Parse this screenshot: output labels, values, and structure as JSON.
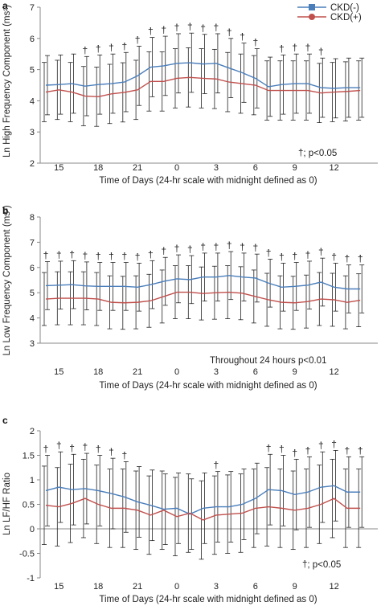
{
  "legend": [
    {
      "label": "CKD(-)",
      "color": "#4a7ebb",
      "marker": "square"
    },
    {
      "label": "CKD(+)",
      "color": "#c0504d",
      "marker": "circle"
    }
  ],
  "chart_data": [
    {
      "panel": "a",
      "type": "line",
      "ylabel": "Ln High Frequency Component (ms²)",
      "xlabel": "Time of Days (24-hr scale with midnight defined as 0)",
      "ylim": [
        2,
        7
      ],
      "yticks": [
        2,
        3,
        4,
        5,
        6,
        7
      ],
      "x": [
        14,
        15,
        16,
        17,
        18,
        19,
        20,
        21,
        22,
        23,
        0,
        1,
        2,
        3,
        4,
        5,
        6,
        7,
        8,
        9,
        10,
        11,
        12,
        13,
        14
      ],
      "xtick_labels": [
        "15",
        "18",
        "21",
        "0",
        "3",
        "6",
        "9",
        "12"
      ],
      "series": [
        {
          "name": "CKD(-)",
          "color": "#4a7ebb",
          "values": [
            4.5,
            4.52,
            4.55,
            4.47,
            4.52,
            4.55,
            4.6,
            4.8,
            5.08,
            5.12,
            5.2,
            5.22,
            5.18,
            5.2,
            5.05,
            4.9,
            4.72,
            4.45,
            4.52,
            4.55,
            4.55,
            4.42,
            4.4,
            4.42,
            4.42
          ],
          "sd": [
            0.95,
            0.95,
            0.95,
            0.95,
            0.95,
            0.95,
            0.95,
            0.95,
            0.95,
            0.95,
            0.95,
            0.95,
            0.95,
            0.95,
            0.95,
            0.95,
            0.95,
            0.95,
            0.95,
            0.95,
            0.95,
            0.95,
            0.95,
            0.95,
            0.95
          ]
        },
        {
          "name": "CKD(+)",
          "color": "#c0504d",
          "values": [
            4.28,
            4.35,
            4.28,
            4.15,
            4.13,
            4.22,
            4.27,
            4.35,
            4.62,
            4.62,
            4.72,
            4.75,
            4.72,
            4.7,
            4.6,
            4.55,
            4.5,
            4.33,
            4.33,
            4.33,
            4.33,
            4.25,
            4.28,
            4.3,
            4.33
          ],
          "sd": [
            0.95,
            0.95,
            0.95,
            0.95,
            0.95,
            0.95,
            0.95,
            0.95,
            0.95,
            0.95,
            0.95,
            0.95,
            0.95,
            0.95,
            0.95,
            0.95,
            0.95,
            0.95,
            0.95,
            0.95,
            0.95,
            0.95,
            0.95,
            0.95,
            0.95
          ]
        }
      ],
      "significant_x": [
        17,
        18,
        19,
        20,
        21,
        22,
        23,
        0,
        1,
        2,
        3,
        4,
        5,
        6,
        8,
        9,
        10,
        11
      ],
      "dagger": "†",
      "annotation": "†; p<0.05"
    },
    {
      "panel": "b",
      "type": "line",
      "ylabel": "Ln Low Frequency Component (ms²)",
      "xlabel": "Time of Days (24-hr scale with midnight defined as 0)",
      "ylim": [
        3,
        8
      ],
      "yticks": [
        3,
        4,
        5,
        6,
        7,
        8
      ],
      "x": [
        14,
        15,
        16,
        17,
        18,
        19,
        20,
        21,
        22,
        23,
        0,
        1,
        2,
        3,
        4,
        5,
        6,
        7,
        8,
        9,
        10,
        11,
        12,
        13,
        14
      ],
      "xtick_labels": [
        "15",
        "18",
        "21",
        "0",
        "3",
        "6",
        "9",
        "12"
      ],
      "series": [
        {
          "name": "CKD(-)",
          "color": "#4a7ebb",
          "values": [
            5.28,
            5.3,
            5.32,
            5.27,
            5.25,
            5.25,
            5.25,
            5.22,
            5.32,
            5.45,
            5.55,
            5.52,
            5.62,
            5.62,
            5.68,
            5.62,
            5.58,
            5.38,
            5.22,
            5.25,
            5.3,
            5.42,
            5.22,
            5.15,
            5.15
          ],
          "sd": [
            0.95,
            0.95,
            0.95,
            0.95,
            0.95,
            0.95,
            0.95,
            0.95,
            0.95,
            0.95,
            0.95,
            0.95,
            0.95,
            0.95,
            0.95,
            0.95,
            0.95,
            0.95,
            0.95,
            0.95,
            0.95,
            0.95,
            0.95,
            0.95,
            0.95
          ]
        },
        {
          "name": "CKD(+)",
          "color": "#c0504d",
          "values": [
            4.75,
            4.78,
            4.78,
            4.78,
            4.75,
            4.62,
            4.6,
            4.62,
            4.68,
            4.85,
            5.02,
            5.02,
            4.97,
            5.0,
            5.02,
            4.98,
            4.85,
            4.72,
            4.62,
            4.6,
            4.65,
            4.75,
            4.72,
            4.62,
            4.7
          ],
          "sd": [
            1.05,
            1.05,
            1.05,
            1.05,
            1.05,
            1.05,
            1.05,
            1.05,
            1.05,
            1.05,
            1.05,
            1.05,
            1.05,
            1.05,
            1.05,
            1.05,
            1.05,
            1.05,
            1.05,
            1.05,
            1.05,
            1.05,
            1.05,
            1.05,
            1.05
          ]
        }
      ],
      "significant_x": [
        14,
        15,
        16,
        17,
        18,
        19,
        20,
        21,
        22,
        23,
        0,
        1,
        2,
        3,
        4,
        5,
        6,
        7,
        8,
        9,
        10,
        11,
        12,
        13,
        14
      ],
      "dagger": "†",
      "annotation": "Throughout 24 hours p<0.01"
    },
    {
      "panel": "c",
      "type": "line",
      "ylabel": "Ln LF/HF Ratio",
      "xlabel": "Time of Days (24-hr scale with midnight defined as 0)",
      "ylim": [
        -1,
        2
      ],
      "yticks": [
        -1,
        -0.5,
        0,
        0.5,
        1,
        1.5,
        2
      ],
      "x": [
        14,
        15,
        16,
        17,
        18,
        19,
        20,
        21,
        22,
        23,
        0,
        1,
        2,
        3,
        4,
        5,
        6,
        7,
        8,
        9,
        10,
        11,
        12,
        13,
        14
      ],
      "xtick_labels": [
        "15",
        "18",
        "21",
        "0",
        "3",
        "6",
        "9",
        "12"
      ],
      "series": [
        {
          "name": "CKD(-)",
          "color": "#4a7ebb",
          "values": [
            0.78,
            0.85,
            0.8,
            0.82,
            0.78,
            0.72,
            0.65,
            0.55,
            0.48,
            0.4,
            0.42,
            0.3,
            0.42,
            0.45,
            0.45,
            0.5,
            0.62,
            0.8,
            0.78,
            0.7,
            0.75,
            0.85,
            0.88,
            0.75,
            0.75
          ],
          "sd": [
            0.72,
            0.72,
            0.72,
            0.72,
            0.72,
            0.72,
            0.72,
            0.72,
            0.72,
            0.72,
            0.72,
            0.72,
            0.72,
            0.72,
            0.72,
            0.72,
            0.72,
            0.72,
            0.72,
            0.72,
            0.72,
            0.72,
            0.72,
            0.72,
            0.72
          ]
        },
        {
          "name": "CKD(+)",
          "color": "#c0504d",
          "values": [
            0.48,
            0.45,
            0.52,
            0.62,
            0.5,
            0.42,
            0.42,
            0.38,
            0.28,
            0.38,
            0.25,
            0.32,
            0.18,
            0.28,
            0.3,
            0.32,
            0.42,
            0.45,
            0.42,
            0.38,
            0.42,
            0.5,
            0.62,
            0.42,
            0.42
          ],
          "sd": [
            0.8,
            0.8,
            0.8,
            0.8,
            0.8,
            0.8,
            0.8,
            0.8,
            0.8,
            0.8,
            0.8,
            0.8,
            0.8,
            0.8,
            0.8,
            0.8,
            0.8,
            0.8,
            0.8,
            0.8,
            0.8,
            0.8,
            0.8,
            0.8,
            0.8
          ]
        }
      ],
      "significant_x": [
        14,
        15,
        16,
        17,
        18,
        19,
        20,
        3,
        7,
        8,
        9,
        10,
        11,
        12,
        13,
        14
      ],
      "dagger": "†",
      "annotation": "†; p<0.05"
    }
  ]
}
